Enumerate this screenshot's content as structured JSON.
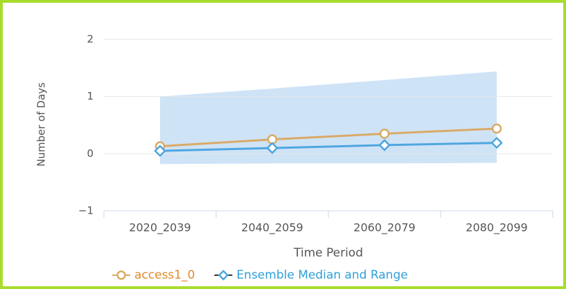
{
  "chart_data": {
    "type": "line",
    "x_label": "Time Period",
    "y_label": "Number of Days",
    "categories": [
      "2020_2039",
      "2040_2059",
      "2060_2079",
      "2080_2099"
    ],
    "series": [
      {
        "name": "access1_0",
        "color": "#d9aa66",
        "legend_color": "#e08a2c",
        "marker": "circle",
        "values": [
          0.13,
          0.25,
          0.35,
          0.44
        ]
      },
      {
        "name": "Ensemble Median and Range",
        "color": "#4ea6df",
        "legend_color": "#2f9fd8",
        "marker": "diamond",
        "values": [
          0.05,
          0.1,
          0.15,
          0.19
        ],
        "range_low": [
          -0.18,
          -0.17,
          -0.17,
          -0.16
        ],
        "range_high": [
          1.0,
          1.14,
          1.29,
          1.44
        ],
        "range_color": "#cfe3f6"
      }
    ],
    "ylim": [
      -1,
      2
    ],
    "yticks": [
      {
        "value": -1,
        "label": "−1"
      },
      0,
      1,
      2
    ],
    "grid": true
  }
}
